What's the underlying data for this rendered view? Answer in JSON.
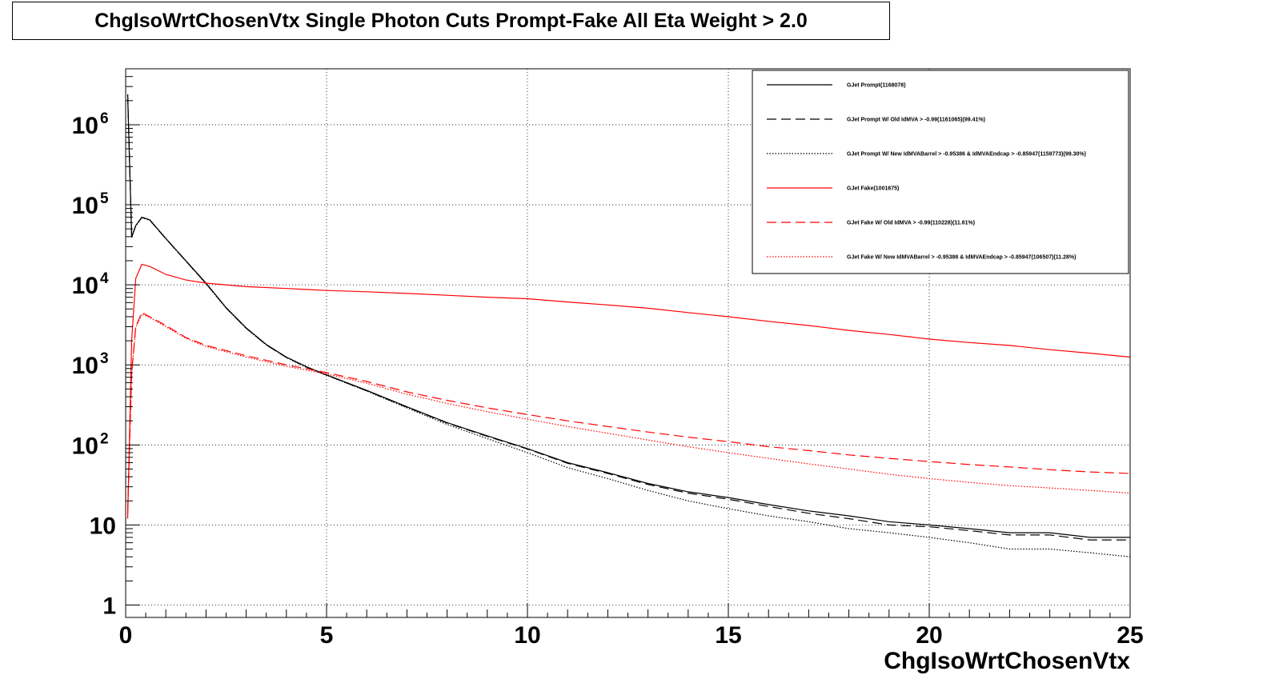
{
  "chart_data": {
    "type": "line",
    "title": "ChgIsoWrtChosenVtx Single Photon Cuts Prompt-Fake All Eta Weight > 2.0",
    "xlabel": "ChgIsoWrtChosenVtx",
    "ylabel": "",
    "xlim": [
      0,
      25
    ],
    "ylim": [
      0.7,
      5000000
    ],
    "y_scale": "log",
    "grid": true,
    "legend_position": "top-right",
    "x_ticks": [
      "0",
      "5",
      "10",
      "15",
      "20",
      "25"
    ],
    "y_ticks": [
      {
        "value": 1,
        "base": "1",
        "exp": ""
      },
      {
        "value": 10,
        "base": "10",
        "exp": ""
      },
      {
        "value": 100,
        "base": "10",
        "exp": "2"
      },
      {
        "value": 1000,
        "base": "10",
        "exp": "3"
      },
      {
        "value": 10000,
        "base": "10",
        "exp": "4"
      },
      {
        "value": 100000,
        "base": "10",
        "exp": "5"
      },
      {
        "value": 1000000,
        "base": "10",
        "exp": "6"
      }
    ],
    "series": [
      {
        "name": "GJet Prompt(1168078)",
        "color": "#000000",
        "dash": "solid",
        "x": [
          0.05,
          0.15,
          0.25,
          0.4,
          0.6,
          1,
          1.5,
          2,
          2.5,
          3,
          3.5,
          4,
          4.5,
          5,
          6,
          7,
          8,
          9,
          10,
          11,
          12,
          13,
          14,
          15,
          16,
          17,
          18,
          19,
          20,
          21,
          22,
          23,
          24,
          25
        ],
        "y": [
          2400000,
          40000,
          55000,
          70000,
          65000,
          38000,
          20000,
          10500,
          5200,
          2900,
          1800,
          1250,
          950,
          750,
          480,
          300,
          190,
          130,
          90,
          60,
          45,
          33,
          26,
          22,
          18,
          15,
          13,
          11,
          10,
          9,
          8,
          8,
          7,
          7
        ]
      },
      {
        "name": "GJet Prompt W/ Old IdMVA > -0.99(1161065)(99.41%)",
        "color": "#000000",
        "dash": "long",
        "x": [
          0.05,
          0.15,
          0.25,
          0.4,
          0.6,
          1,
          1.5,
          2,
          2.5,
          3,
          3.5,
          4,
          4.5,
          5,
          6,
          7,
          8,
          9,
          10,
          11,
          12,
          13,
          14,
          15,
          16,
          17,
          18,
          19,
          20,
          21,
          22,
          23,
          24,
          25
        ],
        "y": [
          2380000,
          39500,
          54500,
          69500,
          64500,
          37700,
          19800,
          10400,
          5150,
          2870,
          1780,
          1240,
          940,
          745,
          475,
          296,
          188,
          128,
          89,
          59,
          44,
          32,
          25,
          21,
          17,
          14,
          12,
          10,
          9.5,
          8.5,
          7.5,
          7.5,
          6.5,
          6.5
        ]
      },
      {
        "name": "GJet Prompt W/ New IdMVABarrel > -0.95386 & IdMVAEndcap > -0.85947(1159773)(99.30%)",
        "color": "#000000",
        "dash": "dot",
        "x": [
          0.05,
          0.15,
          0.25,
          0.4,
          0.6,
          1,
          1.5,
          2,
          2.5,
          3,
          3.5,
          4,
          4.5,
          5,
          6,
          7,
          8,
          9,
          10,
          11,
          12,
          13,
          14,
          15,
          16,
          17,
          18,
          19,
          20,
          21,
          22,
          23,
          24,
          25
        ],
        "y": [
          2370000,
          39000,
          54000,
          69000,
          64000,
          37500,
          19700,
          10300,
          5100,
          2850,
          1770,
          1230,
          930,
          740,
          470,
          290,
          180,
          120,
          80,
          52,
          38,
          27,
          20,
          16,
          13,
          11,
          9,
          8,
          7,
          6,
          5,
          5,
          4.5,
          4
        ]
      },
      {
        "name": "GJet Fake(1001675)",
        "color": "#ff0000",
        "dash": "solid",
        "x": [
          0.05,
          0.15,
          0.25,
          0.4,
          0.6,
          1,
          1.5,
          2,
          3,
          4,
          5,
          6,
          7,
          8,
          9,
          10,
          11,
          12,
          13,
          14,
          15,
          16,
          17,
          18,
          19,
          20,
          21,
          22,
          23,
          24,
          25
        ],
        "y": [
          12,
          2000,
          12000,
          18000,
          17000,
          13500,
          11500,
          10500,
          9500,
          9000,
          8500,
          8200,
          7800,
          7400,
          7000,
          6700,
          6100,
          5600,
          5100,
          4500,
          4000,
          3500,
          3100,
          2700,
          2400,
          2100,
          1900,
          1750,
          1550,
          1400,
          1250
        ]
      },
      {
        "name": "GJet Fake W/ Old IdMVA > -0.99(110228)(11.61%)",
        "color": "#ff0000",
        "dash": "long",
        "x": [
          0.05,
          0.15,
          0.25,
          0.4,
          0.6,
          1,
          1.5,
          2,
          3,
          4,
          5,
          6,
          7,
          8,
          9,
          10,
          11,
          12,
          13,
          14,
          15,
          16,
          17,
          18,
          19,
          20,
          21,
          22,
          23,
          24,
          25
        ],
        "y": [
          15,
          800,
          3000,
          4500,
          4000,
          3100,
          2200,
          1750,
          1300,
          1000,
          800,
          620,
          460,
          360,
          290,
          240,
          200,
          170,
          145,
          125,
          110,
          95,
          85,
          75,
          68,
          62,
          57,
          53,
          49,
          46,
          44
        ]
      },
      {
        "name": "GJet Fake W/ New IdMVABarrel > -0.95386 & IdMVAEndcap > -0.85947(106507)(11.28%)",
        "color": "#ff0000",
        "dash": "dot",
        "x": [
          0.05,
          0.15,
          0.25,
          0.4,
          0.6,
          1,
          1.5,
          2,
          3,
          4,
          5,
          6,
          7,
          8,
          9,
          10,
          11,
          12,
          13,
          14,
          15,
          16,
          17,
          18,
          19,
          20,
          21,
          22,
          23,
          24,
          25
        ],
        "y": [
          14,
          780,
          2900,
          4300,
          3900,
          3000,
          2150,
          1700,
          1250,
          960,
          770,
          590,
          430,
          330,
          260,
          210,
          170,
          140,
          115,
          95,
          80,
          68,
          58,
          50,
          43,
          38,
          34,
          31,
          29,
          27,
          25
        ]
      }
    ]
  }
}
